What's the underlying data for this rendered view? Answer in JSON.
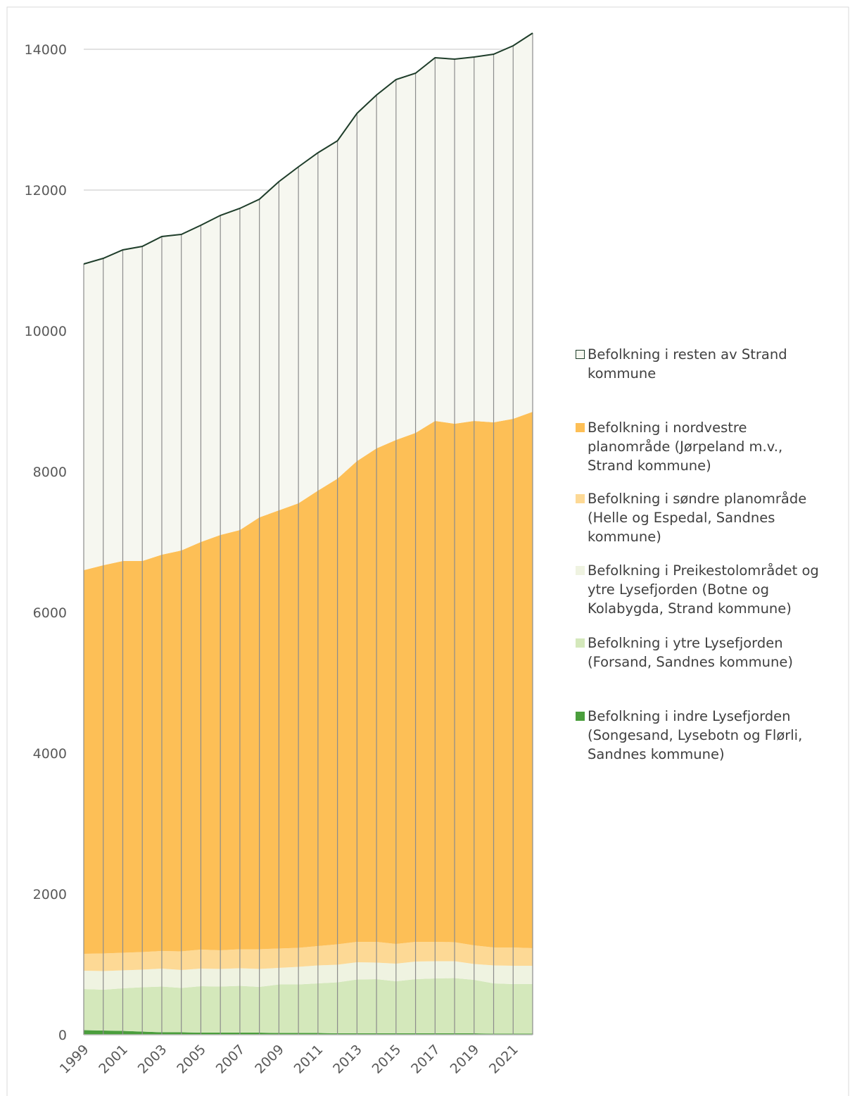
{
  "chart_data": {
    "type": "stacked_area",
    "categories": [
      1999,
      null,
      2001,
      null,
      2003,
      null,
      2005,
      null,
      2007,
      null,
      2009,
      null,
      2011,
      null,
      2013,
      null,
      2015,
      null,
      2017,
      null,
      2019,
      null,
      2021,
      null
    ],
    "ylim": [
      0,
      14000
    ],
    "yticks": [
      0,
      2000,
      4000,
      6000,
      8000,
      10000,
      12000,
      14000
    ],
    "grid": true,
    "series": [
      {
        "name": "Befolkning i indre Lysefjorden (Songesand, Lysebotn og Flørli, Sandnes kommune)",
        "color": "#4a9e3c",
        "values": [
          65,
          60,
          55,
          45,
          35,
          35,
          30,
          30,
          30,
          30,
          25,
          25,
          25,
          20,
          20,
          20,
          20,
          20,
          20,
          20,
          20,
          15,
          15,
          15
        ]
      },
      {
        "name": "Befolkning i ytre Lysefjorden (Forsand, Sandnes kommune)",
        "color": "#d4e8bb",
        "values": [
          585,
          580,
          605,
          630,
          650,
          630,
          660,
          655,
          665,
          650,
          690,
          690,
          705,
          725,
          765,
          770,
          740,
          770,
          780,
          785,
          760,
          715,
          705,
          705
        ]
      },
      {
        "name": "Befolkning i Preikestolområdet og ytre Lysefjorden (Botne og Kolabygda, Strand kommune)",
        "color": "#eff3e1",
        "values": [
          260,
          265,
          255,
          250,
          255,
          255,
          250,
          250,
          250,
          255,
          235,
          250,
          255,
          250,
          245,
          235,
          250,
          250,
          245,
          240,
          225,
          255,
          260,
          260
        ]
      },
      {
        "name": "Befolkning i søndre planområde (Helle og Espedal, Sandnes kommune)",
        "color": "#fdd995",
        "values": [
          240,
          250,
          250,
          250,
          250,
          265,
          270,
          265,
          270,
          280,
          275,
          270,
          275,
          290,
          290,
          295,
          280,
          280,
          275,
          270,
          265,
          255,
          260,
          250
        ]
      },
      {
        "name": "Befolkning i nordvestre planområde (Jørpeland m.v., Strand kommune)",
        "color": "#fdbf56",
        "values": [
          5450,
          5515,
          5565,
          5555,
          5630,
          5695,
          5790,
          5900,
          5955,
          6135,
          6225,
          6315,
          6470,
          6615,
          6830,
          7010,
          7160,
          7230,
          7400,
          7365,
          7450,
          7460,
          7510,
          7620
        ]
      },
      {
        "name": "Befolkning i resten av Strand kommune",
        "color": "#f6f7f0",
        "edgecolor": "#1e3d2a",
        "values": [
          4350,
          4360,
          4420,
          4470,
          4520,
          4490,
          4500,
          4540,
          4570,
          4520,
          4670,
          4780,
          4800,
          4800,
          4940,
          5020,
          5120,
          5110,
          5160,
          5180,
          5170,
          5230,
          5300,
          5380
        ]
      }
    ]
  }
}
